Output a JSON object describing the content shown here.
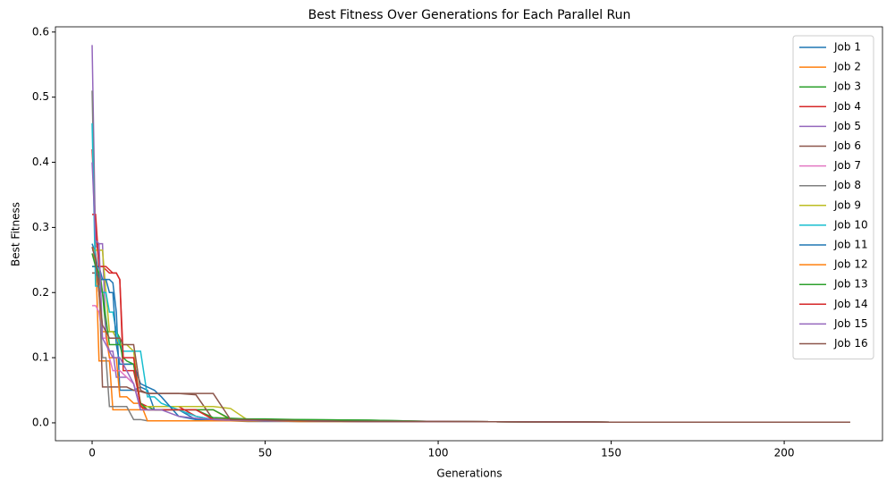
{
  "chart_data": {
    "type": "line",
    "title": "Best Fitness Over Generations for Each Parallel Run",
    "x_label": "Generations",
    "y_label": "Best Fitness",
    "x": [
      0,
      1,
      2,
      3,
      4,
      5,
      6,
      7,
      8,
      9,
      10,
      12,
      14,
      16,
      18,
      20,
      25,
      30,
      35,
      40,
      45,
      50,
      60,
      80,
      100,
      150,
      219
    ],
    "xlim": [
      -10.6,
      228.4
    ],
    "xticks": [
      0,
      50,
      100,
      150,
      200
    ],
    "ylim": [
      -0.0275,
      0.608
    ],
    "yticks": [
      {
        "value": 0,
        "label": "0.0"
      },
      0.1,
      0.2,
      0.3,
      0.4,
      0.5,
      0.6
    ],
    "legend": "upper right",
    "series": [
      {
        "name": "Job 1",
        "color": "#1f77b4",
        "values": [
          0.275,
          0.26,
          0.22,
          0.22,
          0.22,
          0.22,
          0.215,
          0.17,
          0.05,
          0.05,
          0.05,
          0.05,
          0.055,
          0.05,
          0.02,
          0.02,
          0.02,
          0.005,
          0.005,
          0.004,
          0.003,
          0.003,
          0.002,
          0.002,
          0.002,
          0.001,
          0.001
        ]
      },
      {
        "name": "Job 2",
        "color": "#ff7f0e",
        "values": [
          0.27,
          0.26,
          0.095,
          0.095,
          0.095,
          0.095,
          0.02,
          0.02,
          0.02,
          0.02,
          0.02,
          0.02,
          0.02,
          0.02,
          0.02,
          0.02,
          0.02,
          0.02,
          0.02,
          0.005,
          0.003,
          0.003,
          0.003,
          0.002,
          0.002,
          0.001,
          0.001
        ]
      },
      {
        "name": "Job 3",
        "color": "#2ca02c",
        "values": [
          0.24,
          0.24,
          0.24,
          0.2,
          0.14,
          0.14,
          0.14,
          0.14,
          0.13,
          0.09,
          0.09,
          0.09,
          0.025,
          0.025,
          0.02,
          0.02,
          0.02,
          0.02,
          0.02,
          0.006,
          0.005,
          0.005,
          0.005,
          0.004,
          0.002,
          0.001,
          0.001
        ]
      },
      {
        "name": "Job 4",
        "color": "#d62728",
        "values": [
          0.42,
          0.3,
          0.24,
          0.24,
          0.235,
          0.23,
          0.23,
          0.23,
          0.22,
          0.08,
          0.08,
          0.08,
          0.03,
          0.025,
          0.025,
          0.025,
          0.025,
          0.01,
          0.005,
          0.005,
          0.004,
          0.004,
          0.003,
          0.003,
          0.002,
          0.001,
          0.001
        ]
      },
      {
        "name": "Job 5",
        "color": "#9467bd",
        "values": [
          0.58,
          0.27,
          0.275,
          0.275,
          0.13,
          0.11,
          0.11,
          0.07,
          0.07,
          0.07,
          0.07,
          0.06,
          0.02,
          0.02,
          0.02,
          0.02,
          0.02,
          0.02,
          0.006,
          0.005,
          0.005,
          0.004,
          0.003,
          0.002,
          0.002,
          0.001,
          0.001
        ]
      },
      {
        "name": "Job 6",
        "color": "#8c564b",
        "values": [
          0.23,
          0.23,
          0.22,
          0.055,
          0.055,
          0.055,
          0.055,
          0.055,
          0.055,
          0.055,
          0.055,
          0.05,
          0.048,
          0.045,
          0.045,
          0.045,
          0.045,
          0.043,
          0.005,
          0.005,
          0.004,
          0.004,
          0.003,
          0.002,
          0.002,
          0.001,
          0.001
        ]
      },
      {
        "name": "Job 7",
        "color": "#e377c2",
        "values": [
          0.18,
          0.18,
          0.17,
          0.13,
          0.13,
          0.1,
          0.08,
          0.08,
          0.08,
          0.075,
          0.07,
          0.06,
          0.025,
          0.02,
          0.02,
          0.02,
          0.02,
          0.01,
          0.005,
          0.004,
          0.004,
          0.003,
          0.003,
          0.002,
          0.002,
          0.001,
          0.001
        ]
      },
      {
        "name": "Job 8",
        "color": "#7f7f7f",
        "values": [
          0.51,
          0.25,
          0.2,
          0.1,
          0.1,
          0.025,
          0.025,
          0.025,
          0.025,
          0.025,
          0.025,
          0.005,
          0.005,
          0.003,
          0.003,
          0.003,
          0.003,
          0.003,
          0.003,
          0.003,
          0.002,
          0.002,
          0.002,
          0.002,
          0.002,
          0.001,
          0.001
        ]
      },
      {
        "name": "Job 9",
        "color": "#bcbd22",
        "values": [
          0.265,
          0.265,
          0.265,
          0.265,
          0.2,
          0.14,
          0.14,
          0.13,
          0.12,
          0.12,
          0.12,
          0.11,
          0.025,
          0.025,
          0.025,
          0.025,
          0.025,
          0.025,
          0.025,
          0.022,
          0.004,
          0.004,
          0.003,
          0.003,
          0.002,
          0.001,
          0.001
        ]
      },
      {
        "name": "Job 10",
        "color": "#17becf",
        "values": [
          0.46,
          0.21,
          0.21,
          0.2,
          0.2,
          0.17,
          0.17,
          0.14,
          0.12,
          0.11,
          0.11,
          0.11,
          0.11,
          0.04,
          0.04,
          0.03,
          0.02,
          0.01,
          0.005,
          0.004,
          0.004,
          0.003,
          0.003,
          0.002,
          0.002,
          0.001,
          0.001
        ]
      },
      {
        "name": "Job 11",
        "color": "#1f77b4",
        "values": [
          0.24,
          0.24,
          0.24,
          0.22,
          0.22,
          0.2,
          0.2,
          0.12,
          0.09,
          0.09,
          0.09,
          0.09,
          0.06,
          0.055,
          0.05,
          0.04,
          0.01,
          0.005,
          0.005,
          0.004,
          0.004,
          0.003,
          0.003,
          0.002,
          0.002,
          0.001,
          0.001
        ]
      },
      {
        "name": "Job 12",
        "color": "#ff7f0e",
        "values": [
          0.26,
          0.25,
          0.2,
          0.14,
          0.14,
          0.1,
          0.1,
          0.1,
          0.04,
          0.04,
          0.04,
          0.03,
          0.03,
          0.003,
          0.003,
          0.003,
          0.003,
          0.003,
          0.003,
          0.003,
          0.003,
          0.003,
          0.002,
          0.002,
          0.002,
          0.001,
          0.001
        ]
      },
      {
        "name": "Job 13",
        "color": "#2ca02c",
        "values": [
          0.26,
          0.24,
          0.23,
          0.2,
          0.16,
          0.12,
          0.12,
          0.12,
          0.12,
          0.1,
          0.095,
          0.09,
          0.03,
          0.02,
          0.02,
          0.02,
          0.02,
          0.02,
          0.008,
          0.007,
          0.006,
          0.006,
          0.005,
          0.004,
          0.002,
          0.001,
          0.001
        ]
      },
      {
        "name": "Job 14",
        "color": "#d62728",
        "values": [
          0.32,
          0.32,
          0.24,
          0.24,
          0.24,
          0.235,
          0.23,
          0.23,
          0.22,
          0.1,
          0.1,
          0.1,
          0.025,
          0.02,
          0.02,
          0.02,
          0.02,
          0.02,
          0.005,
          0.005,
          0.004,
          0.004,
          0.003,
          0.002,
          0.002,
          0.001,
          0.001
        ]
      },
      {
        "name": "Job 15",
        "color": "#9467bd",
        "values": [
          0.4,
          0.28,
          0.275,
          0.13,
          0.12,
          0.11,
          0.1,
          0.1,
          0.1,
          0.09,
          0.08,
          0.06,
          0.02,
          0.02,
          0.02,
          0.02,
          0.01,
          0.007,
          0.005,
          0.004,
          0.004,
          0.003,
          0.003,
          0.002,
          0.002,
          0.001,
          0.001
        ]
      },
      {
        "name": "Job 16",
        "color": "#8c564b",
        "values": [
          0.27,
          0.25,
          0.2,
          0.15,
          0.14,
          0.13,
          0.13,
          0.13,
          0.13,
          0.12,
          0.12,
          0.12,
          0.05,
          0.045,
          0.045,
          0.045,
          0.045,
          0.045,
          0.045,
          0.005,
          0.005,
          0.004,
          0.003,
          0.002,
          0.002,
          0.001,
          0.001
        ]
      }
    ]
  }
}
